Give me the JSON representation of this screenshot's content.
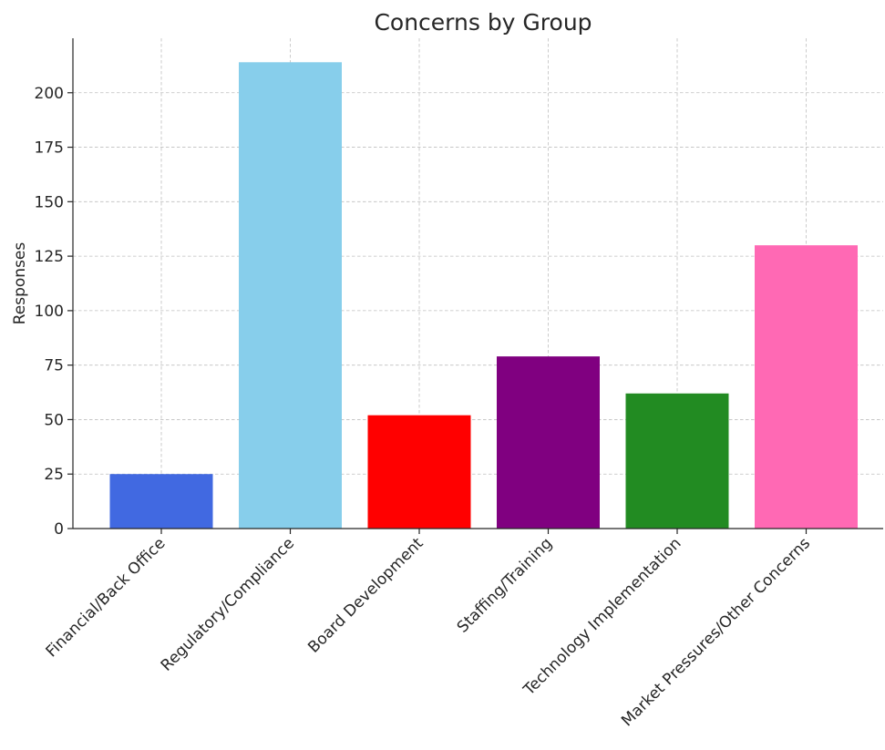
{
  "chart_data": {
    "type": "bar",
    "title": "Concerns by Group",
    "xlabel": "",
    "ylabel": "Responses",
    "categories": [
      "Financial/Back Office",
      "Regulatory/Compliance",
      "Board Development",
      "Staffing/Training",
      "Technology Implementation",
      "Market Pressures/Other Concerns"
    ],
    "values": [
      25,
      214,
      52,
      79,
      62,
      130
    ],
    "colors": [
      "#4169E1",
      "#87CEEB",
      "#FF0000",
      "#800080",
      "#228B22",
      "#FF69B4"
    ],
    "ylim": [
      0,
      225
    ],
    "yticks": [
      0,
      25,
      50,
      75,
      100,
      125,
      150,
      175,
      200
    ],
    "grid": true,
    "legend": "none"
  }
}
